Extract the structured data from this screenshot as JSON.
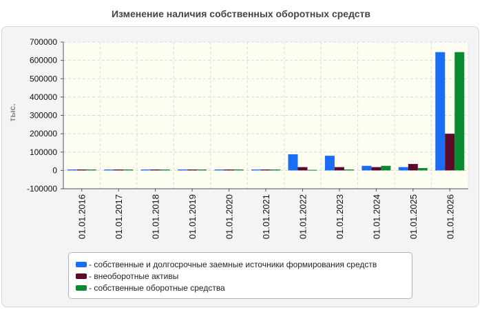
{
  "chart_data": {
    "type": "bar",
    "title": "Изменение наличия собственных оборотных средств",
    "ylabel": "тыс.",
    "xlabel": "",
    "ylim": [
      -100000,
      700000
    ],
    "yticks": [
      -100000,
      0,
      100000,
      200000,
      300000,
      400000,
      500000,
      600000,
      700000
    ],
    "grid": true,
    "legend_position": "bottom",
    "categories": [
      "01.01.2016",
      "01.01.2017",
      "01.01.2018",
      "01.01.2019",
      "01.01.2020",
      "01.01.2021",
      "01.01.2022",
      "01.01.2023",
      "01.01.2024",
      "01.01.2025",
      "01.01.2026"
    ],
    "series": [
      {
        "name": "- собственные и долгосрочные заемные источники формирования средств",
        "color": "#1a6ef5",
        "values": [
          5000,
          5000,
          5000,
          5000,
          5000,
          5000,
          88000,
          80000,
          25000,
          18000,
          645000
        ]
      },
      {
        "name": "- внеоборотные активы",
        "color": "#5c0a2c",
        "values": [
          5000,
          5000,
          5000,
          5000,
          5000,
          5000,
          18000,
          18000,
          18000,
          35000,
          200000
        ]
      },
      {
        "name": "- собственные оборотные средства",
        "color": "#0a8a2e",
        "values": [
          5000,
          5000,
          5000,
          5000,
          5000,
          5000,
          3000,
          5000,
          25000,
          13000,
          645000
        ]
      }
    ]
  }
}
